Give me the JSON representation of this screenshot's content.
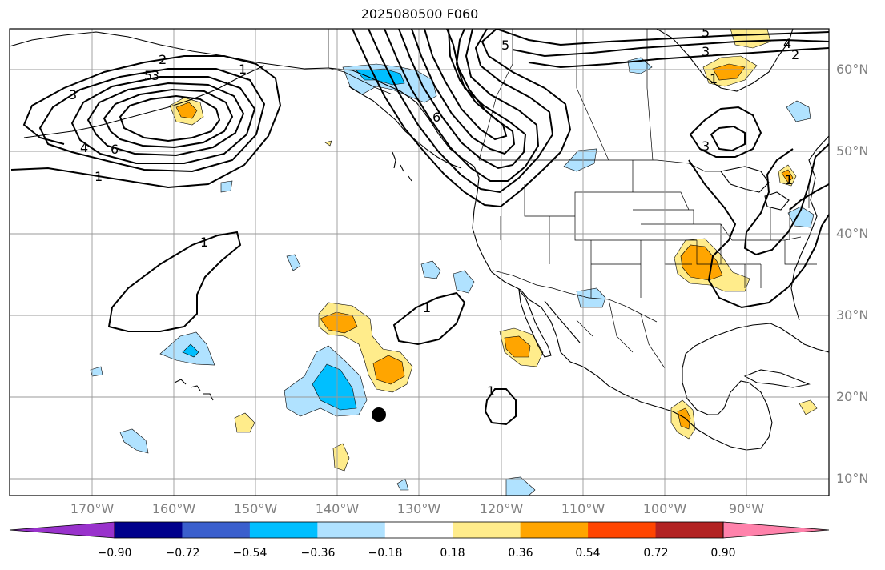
{
  "title": "2025080500 F060",
  "map": {
    "lon_labels": [
      "170°W",
      "160°W",
      "150°W",
      "140°W",
      "130°W",
      "120°W",
      "110°W",
      "100°W",
      "90°W"
    ],
    "lat_labels": [
      "60°N",
      "50°N",
      "40°N",
      "30°N",
      "20°N",
      "10°N"
    ],
    "contour_labels": [
      "2",
      "3",
      "5",
      "3",
      "4",
      "6",
      "1",
      "5",
      "6",
      "1",
      "1",
      "1",
      "1",
      "3",
      "3",
      "2",
      "5",
      "4",
      "1",
      "1"
    ],
    "marker": "storm-center-dot"
  },
  "colorbar": {
    "ticks": [
      "−0.90",
      "−0.72",
      "−0.54",
      "−0.36",
      "−0.18",
      "0.18",
      "0.36",
      "0.54",
      "0.72",
      "0.90"
    ],
    "colors": [
      "#9932CC",
      "#00008B",
      "#3A5FCD",
      "#00BFFF",
      "#B0E2FF",
      "#FFFFFF",
      "#FFEC8B",
      "#FFA500",
      "#FF4500",
      "#B22222",
      "#FF82AB"
    ]
  }
}
